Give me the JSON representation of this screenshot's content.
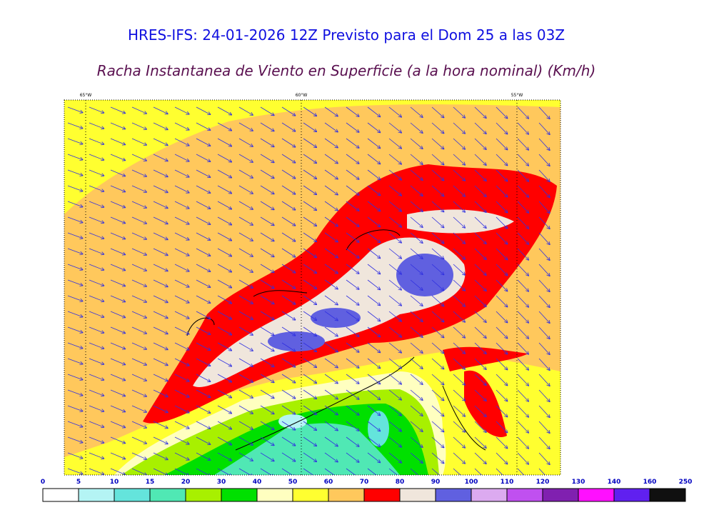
{
  "header": {
    "title": "HRES-IFS: 24-01-2026 12Z Previsto para el Dom 25 a las 03Z",
    "subtitle": "Racha Instantanea de Viento en Superficie (a la hora nominal) (Km/h)"
  },
  "map": {
    "longitudes": [
      "65°W",
      "60°W",
      "55°W"
    ]
  },
  "legend": {
    "ticks": [
      0,
      5,
      10,
      15,
      20,
      30,
      40,
      50,
      60,
      70,
      80,
      90,
      100,
      110,
      120,
      130,
      140,
      160,
      250
    ],
    "colors": [
      "#ffffff",
      "#b4f4f4",
      "#64e4dc",
      "#50e8b4",
      "#a8f000",
      "#00e000",
      "#ffffc0",
      "#ffff30",
      "#ffc85c",
      "#ff0000",
      "#f0e6dc",
      "#6060e0",
      "#dcaaf0",
      "#c050f0",
      "#8020b0",
      "#ff10ff",
      "#6020f0",
      "#101010"
    ]
  }
}
